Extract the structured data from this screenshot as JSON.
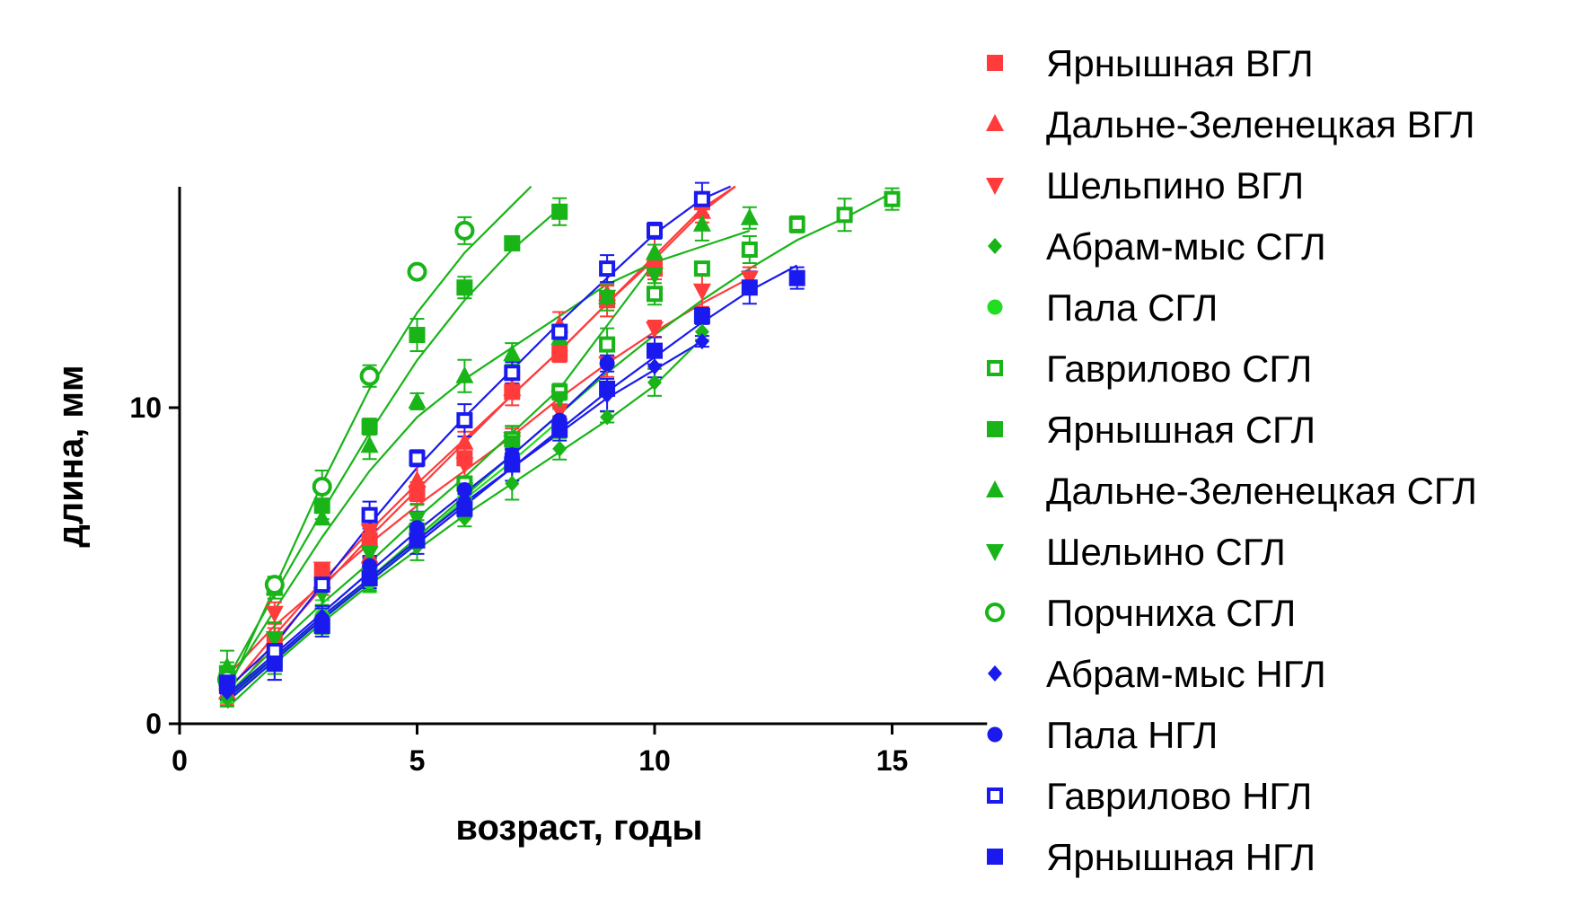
{
  "chart_data": {
    "type": "scatter",
    "xlabel": "возраст, годы",
    "ylabel": "длина, мм",
    "xlim": [
      0,
      17
    ],
    "ylim": [
      0,
      17.5
    ],
    "xticks": [
      0,
      5,
      10,
      15
    ],
    "yticks": [
      0,
      10
    ],
    "grid": false,
    "legend_position": "right",
    "series": [
      {
        "name": "Ярнышная ВГЛ",
        "color": "#ff3b3b",
        "marker": "square-filled",
        "x": [
          1,
          2,
          3,
          4,
          5,
          6,
          7,
          8,
          9,
          10,
          11
        ],
        "y": [
          1.2,
          2.6,
          4.8,
          5.8,
          7.3,
          8.4,
          10.5,
          11.7,
          13.4,
          14.4,
          16.5
        ],
        "fit_x": [
          1,
          2,
          3,
          4,
          5,
          6,
          7,
          8,
          9,
          10,
          11,
          11.7
        ],
        "fit_y": [
          0.7,
          2.6,
          4.3,
          5.9,
          7.4,
          8.9,
          10.4,
          11.8,
          13.3,
          14.8,
          16.3,
          17.0
        ]
      },
      {
        "name": "Дальне-Зеленецкая ВГЛ",
        "color": "#ff3b3b",
        "marker": "triangle-up",
        "x": [
          1,
          2,
          3,
          4,
          5,
          6,
          7,
          8,
          9,
          10,
          11
        ],
        "y": [
          1.0,
          2.7,
          4.5,
          5.3,
          7.7,
          8.9,
          10.6,
          12.6,
          13.6,
          14.9,
          16.2
        ],
        "fit_x": [
          1,
          2,
          3,
          4,
          5,
          6,
          7,
          8,
          9,
          10,
          11,
          11.7
        ],
        "fit_y": [
          1.0,
          2.8,
          4.5,
          6.1,
          7.6,
          9.0,
          10.4,
          11.8,
          13.3,
          14.7,
          16.2,
          17.0
        ]
      },
      {
        "name": "Шельпино ВГЛ",
        "color": "#ff3b3b",
        "marker": "triangle-down",
        "x": [
          1,
          2,
          3,
          4,
          5,
          6,
          7,
          8,
          9,
          10,
          11,
          12
        ],
        "y": [
          1.1,
          3.5,
          4.9,
          6.1,
          7.3,
          8.2,
          9.0,
          9.9,
          11.4,
          12.5,
          13.7,
          14.1
        ],
        "fit_x": [
          1,
          2,
          3,
          4,
          5,
          6,
          7,
          8,
          9,
          10,
          11,
          12
        ],
        "fit_y": [
          1.5,
          3.1,
          4.4,
          5.7,
          6.9,
          8.0,
          9.1,
          10.3,
          11.4,
          12.4,
          13.3,
          14.1
        ]
      },
      {
        "name": "Абрам-мыс СГЛ",
        "color": "#18b418",
        "marker": "diamond",
        "x": [
          1,
          2,
          3,
          4,
          5,
          6,
          7,
          8,
          9,
          10,
          11
        ],
        "y": [
          0.8,
          1.9,
          3.3,
          4.4,
          5.6,
          6.5,
          7.6,
          8.7,
          9.7,
          10.8,
          12.4
        ],
        "fit_x": [
          1,
          2,
          3,
          4,
          5,
          6,
          7,
          8,
          9,
          10,
          11
        ],
        "fit_y": [
          0.5,
          1.9,
          3.2,
          4.4,
          5.5,
          6.6,
          7.6,
          8.6,
          9.6,
          10.7,
          12.2
        ]
      },
      {
        "name": "Пала СГЛ",
        "color": "#22dd22",
        "marker": "circle-filled",
        "x": [
          1,
          2,
          3,
          4,
          5,
          6,
          7,
          8
        ],
        "y": [
          1.1,
          2.1,
          3.4,
          4.5,
          5.8,
          7.1,
          8.4,
          9.6
        ],
        "fit_x": [
          1,
          2,
          3,
          4,
          5,
          6,
          7,
          8
        ],
        "fit_y": [
          0.8,
          2.0,
          3.3,
          4.5,
          5.8,
          7.1,
          8.3,
          9.6
        ]
      },
      {
        "name": "Гаврилово СГЛ",
        "color": "#18b418",
        "marker": "square-open",
        "x": [
          1,
          2,
          3,
          4,
          5,
          6,
          7,
          8,
          9,
          10,
          11,
          12,
          13,
          14,
          15
        ],
        "y": [
          1.3,
          2.0,
          3.1,
          4.7,
          6.1,
          7.6,
          9.0,
          10.5,
          12.0,
          13.6,
          14.4,
          15.0,
          15.8,
          16.1,
          16.6
        ],
        "fit_x": [
          1,
          2,
          3,
          4,
          5,
          6,
          7,
          8,
          9,
          10,
          11,
          12,
          13,
          14,
          15
        ],
        "fit_y": [
          0.9,
          2.1,
          3.3,
          4.6,
          5.9,
          7.2,
          8.5,
          9.8,
          11.1,
          12.3,
          13.4,
          14.4,
          15.3,
          16.0,
          16.8
        ]
      },
      {
        "name": "Ярнышная СГЛ",
        "color": "#18b418",
        "marker": "square-filled",
        "x": [
          1,
          2,
          3,
          4,
          5,
          6,
          7,
          8
        ],
        "y": [
          1.6,
          4.3,
          6.9,
          9.4,
          12.3,
          13.8,
          15.2,
          16.2
        ],
        "fit_x": [
          1,
          2,
          3,
          4,
          5,
          6,
          7,
          8
        ],
        "fit_y": [
          1.4,
          4.1,
          6.7,
          9.2,
          11.5,
          13.4,
          15.0,
          16.3
        ]
      },
      {
        "name": "Дальне-Зеленецкая СГЛ",
        "color": "#18b418",
        "marker": "triangle-up",
        "x": [
          1,
          2,
          3,
          4,
          5,
          6,
          7,
          8,
          9,
          10,
          11,
          12
        ],
        "y": [
          1.8,
          4.3,
          6.5,
          8.8,
          10.2,
          11.0,
          11.7,
          12.2,
          13.5,
          14.9,
          15.8,
          16.0
        ],
        "fit_x": [
          1,
          2,
          3,
          4,
          5,
          6,
          7,
          8,
          9,
          10,
          11,
          12
        ],
        "fit_y": [
          1.2,
          3.6,
          5.9,
          8.0,
          9.7,
          10.9,
          11.9,
          12.9,
          13.9,
          14.6,
          15.1,
          15.6
        ]
      },
      {
        "name": "Шельино СГЛ",
        "color": "#18b418",
        "marker": "triangle-down",
        "x": [
          1,
          2,
          3,
          4,
          5,
          6,
          7,
          8,
          9,
          10
        ],
        "y": [
          1.0,
          2.7,
          4.1,
          5.4,
          6.5,
          7.4,
          8.9,
          10.3,
          13.5,
          14.2
        ],
        "fit_x": [
          1,
          2,
          3,
          4,
          5,
          6,
          7,
          8,
          9,
          10
        ],
        "fit_y": [
          0.9,
          2.4,
          3.8,
          5.1,
          6.5,
          7.8,
          9.2,
          10.6,
          12.6,
          14.6
        ]
      },
      {
        "name": "Порчниха СГЛ",
        "color": "#18b418",
        "marker": "circle-open",
        "x": [
          1,
          2,
          3,
          4,
          5,
          6
        ],
        "y": [
          1.4,
          4.4,
          7.5,
          11.0,
          14.3,
          15.6
        ],
        "fit_x": [
          1,
          2,
          3,
          4,
          5,
          6,
          7,
          7.4
        ],
        "fit_y": [
          1.0,
          4.3,
          7.6,
          10.6,
          13.0,
          14.9,
          16.4,
          17.0
        ]
      },
      {
        "name": "Абрам-мыс НГЛ",
        "color": "#1a1aee",
        "marker": "diamond",
        "x": [
          1,
          2,
          3,
          4,
          5,
          6,
          7,
          8,
          9,
          10,
          11
        ],
        "y": [
          1.0,
          2.1,
          3.4,
          4.8,
          6.0,
          7.1,
          8.5,
          9.4,
          10.4,
          11.3,
          12.1
        ],
        "fit_x": [
          1,
          2,
          3,
          4,
          5,
          6,
          7,
          8,
          9,
          10,
          11
        ],
        "fit_y": [
          0.8,
          2.1,
          3.4,
          4.6,
          5.8,
          7.0,
          8.1,
          9.2,
          10.3,
          11.2,
          12.1
        ]
      },
      {
        "name": "Пала НГЛ",
        "color": "#1a1aee",
        "marker": "circle-filled",
        "x": [
          1,
          2,
          3,
          4,
          5,
          6,
          7,
          8,
          9
        ],
        "y": [
          1.1,
          2.3,
          3.3,
          5.0,
          6.2,
          7.4,
          8.5,
          9.6,
          11.4
        ],
        "fit_x": [
          1,
          2,
          3,
          4,
          5,
          6,
          7,
          8,
          9
        ],
        "fit_y": [
          0.9,
          2.2,
          3.5,
          4.8,
          6.1,
          7.3,
          8.5,
          9.8,
          11.2
        ]
      },
      {
        "name": "Гаврилово НГЛ",
        "color": "#1a1aee",
        "marker": "square-open",
        "x": [
          1,
          2,
          3,
          4,
          5,
          6,
          7,
          8,
          9,
          10,
          11
        ],
        "y": [
          1.3,
          2.3,
          4.4,
          6.6,
          8.4,
          9.6,
          11.1,
          12.4,
          14.4,
          15.6,
          16.6
        ],
        "fit_x": [
          1,
          2,
          3,
          4,
          5,
          6,
          7,
          8,
          9,
          10,
          11,
          11.6
        ],
        "fit_y": [
          1.1,
          2.5,
          4.4,
          6.3,
          8.1,
          9.7,
          11.2,
          12.7,
          14.1,
          15.5,
          16.6,
          17.0
        ]
      },
      {
        "name": "Ярнышная НГЛ",
        "color": "#1a1aee",
        "marker": "square-filled",
        "x": [
          1,
          2,
          3,
          4,
          5,
          6,
          7,
          8,
          9,
          10,
          11,
          12,
          13
        ],
        "y": [
          1.2,
          1.9,
          3.1,
          4.6,
          5.8,
          6.8,
          8.2,
          9.3,
          10.6,
          11.8,
          12.9,
          13.8,
          14.1
        ],
        "fit_x": [
          1,
          2,
          3,
          4,
          5,
          6,
          7,
          8,
          9,
          10,
          11,
          12,
          13
        ],
        "fit_y": [
          0.7,
          2.0,
          3.3,
          4.5,
          5.7,
          6.9,
          8.1,
          9.3,
          10.5,
          11.6,
          12.7,
          13.7,
          14.5
        ]
      }
    ]
  }
}
